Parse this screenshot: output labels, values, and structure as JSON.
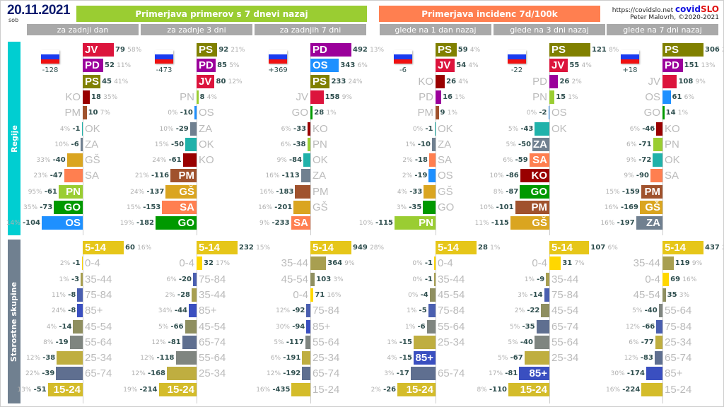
{
  "header": {
    "date": "20.11.2021",
    "weekday": "sob",
    "banner_left": "Primerjava primerov s 7 dnevi nazaj",
    "banner_right": "Primerjava incidenc 7d/100k",
    "url": "https://covidslo.net",
    "logo_a": "covid",
    "logo_b": "SLO",
    "author": "Peter Malovrh, ©2020-2021",
    "subheaders": [
      "za zadnji dan",
      "za zadnje 3 dni",
      "za zadnjih 7 dni",
      "glede na 1 dan nazaj",
      "glede na 3 dni nazaj",
      "glede na 7 dni nazaj"
    ]
  },
  "colors": {
    "JV": "#dc143c",
    "PD": "#9b009b",
    "PS": "#808000",
    "KO": "#990000",
    "PM": "#a0522d",
    "OK": "#20b2aa",
    "ZA": "#708090",
    "GŠ": "#daa520",
    "SA": "#ff7f50",
    "PN": "#9acd32",
    "GO": "#009900",
    "OS": "#1e90ff",
    "5-14": "#e6c619",
    "0-4": "#ffd700",
    "15-24": "#d4bc2a",
    "25-34": "#bfae40",
    "35-44": "#a89f50",
    "45-54": "#8f8f60",
    "55-64": "#7f8580",
    "65-74": "#5f6f90",
    "75-84": "#4a5fb0",
    "85+": "#3a4fc0",
    "regije_bar": "#00ced1",
    "starost_bar": "#708090"
  },
  "chart_data": [
    {
      "type": "bar",
      "title": "Regije",
      "panels": [
        {
          "total": "-128",
          "items": [
            {
              "l": "JV",
              "v": 79,
              "p": "58%",
              "in": true
            },
            {
              "l": "PD",
              "v": 52,
              "p": "11%",
              "in": true
            },
            {
              "l": "PS",
              "v": 45,
              "p": "41%",
              "in": true
            },
            {
              "l": "KO",
              "v": 18,
              "p": "35%"
            },
            {
              "l": "PM",
              "v": 10,
              "p": "7%"
            },
            {
              "l": "OK",
              "v": -1,
              "p": "4%"
            },
            {
              "l": "ZA",
              "v": -6,
              "p": "10%"
            },
            {
              "l": "GŠ",
              "v": -40,
              "p": "33%"
            },
            {
              "l": "SA",
              "v": -47,
              "p": "23%"
            },
            {
              "l": "PN",
              "v": -61,
              "p": "95%",
              "in": true
            },
            {
              "l": "GO",
              "v": -73,
              "p": "35%",
              "in": true
            },
            {
              "l": "OS",
              "v": -104,
              "p": "14%",
              "in": true
            }
          ]
        },
        {
          "total": "-473",
          "items": [
            {
              "l": "PS",
              "v": 92,
              "p": "21%",
              "in": true
            },
            {
              "l": "PD",
              "v": 85,
              "p": "5%",
              "in": true
            },
            {
              "l": "JV",
              "v": 80,
              "p": "12%",
              "in": true
            },
            {
              "l": "PN",
              "v": 8,
              "p": "4%"
            },
            {
              "l": "OS",
              "v": -10,
              "p": "0%"
            },
            {
              "l": "ZA",
              "v": -29,
              "p": "10%"
            },
            {
              "l": "OK",
              "v": -50,
              "p": "15%"
            },
            {
              "l": "KO",
              "v": -61,
              "p": "24%"
            },
            {
              "l": "PM",
              "v": -116,
              "p": "21%",
              "in": true
            },
            {
              "l": "GŠ",
              "v": -137,
              "p": "24%",
              "in": true
            },
            {
              "l": "SA",
              "v": -153,
              "p": "15%",
              "in": true
            },
            {
              "l": "GO",
              "v": -182,
              "p": "19%",
              "in": true
            }
          ]
        },
        {
          "total": "+369",
          "items": [
            {
              "l": "PD",
              "v": 492,
              "p": "13%",
              "in": true
            },
            {
              "l": "OS",
              "v": 343,
              "p": "6%",
              "in": true
            },
            {
              "l": "PS",
              "v": 233,
              "p": "24%",
              "in": true
            },
            {
              "l": "JV",
              "v": 158,
              "p": "9%"
            },
            {
              "l": "GO",
              "v": 28,
              "p": "1%"
            },
            {
              "l": "KO",
              "v": -33,
              "p": "6%"
            },
            {
              "l": "PN",
              "v": -38,
              "p": "6%"
            },
            {
              "l": "OK",
              "v": -84,
              "p": "9%"
            },
            {
              "l": "ZA",
              "v": -113,
              "p": "16%"
            },
            {
              "l": "PM",
              "v": -183,
              "p": "16%"
            },
            {
              "l": "GŠ",
              "v": -201,
              "p": "16%"
            },
            {
              "l": "SA",
              "v": -233,
              "p": "9%",
              "in": true
            }
          ]
        },
        {
          "total": "-6",
          "items": [
            {
              "l": "PS",
              "v": 59,
              "p": "4%",
              "in": true
            },
            {
              "l": "JV",
              "v": 54,
              "p": "4%",
              "in": true
            },
            {
              "l": "KO",
              "v": 26,
              "p": "4%"
            },
            {
              "l": "PD",
              "v": 16,
              "p": "1%"
            },
            {
              "l": "PM",
              "v": 9,
              "p": "1%"
            },
            {
              "l": "OK",
              "v": -1,
              "p": "0%"
            },
            {
              "l": "ZA",
              "v": -10,
              "p": "1%"
            },
            {
              "l": "SA",
              "v": -18,
              "p": "2%"
            },
            {
              "l": "OS",
              "v": -19,
              "p": "2%"
            },
            {
              "l": "GŠ",
              "v": -33,
              "p": "4%"
            },
            {
              "l": "GO",
              "v": -35,
              "p": "3%"
            },
            {
              "l": "PN",
              "v": -115,
              "p": "10%",
              "in": true
            }
          ]
        },
        {
          "total": "-22",
          "items": [
            {
              "l": "PS",
              "v": 121,
              "p": "8%",
              "in": true
            },
            {
              "l": "JV",
              "v": 55,
              "p": "4%",
              "in": true
            },
            {
              "l": "PD",
              "v": 26,
              "p": "2%"
            },
            {
              "l": "PN",
              "v": 15,
              "p": "1%"
            },
            {
              "l": "OS",
              "v": -2,
              "p": "0%"
            },
            {
              "l": "OK",
              "v": -43,
              "p": "5%"
            },
            {
              "l": "ZA",
              "v": -50,
              "p": "5%",
              "in": true
            },
            {
              "l": "SA",
              "v": -59,
              "p": "6%",
              "in": true
            },
            {
              "l": "KO",
              "v": -86,
              "p": "10%",
              "in": true
            },
            {
              "l": "GO",
              "v": -87,
              "p": "8%",
              "in": true
            },
            {
              "l": "PM",
              "v": -101,
              "p": "10%",
              "in": true
            },
            {
              "l": "GŠ",
              "v": -115,
              "p": "11%",
              "in": true
            }
          ]
        },
        {
          "total": "+18",
          "items": [
            {
              "l": "PS",
              "v": 306,
              "p": "24%",
              "in": true
            },
            {
              "l": "PD",
              "v": 151,
              "p": "13%",
              "in": true
            },
            {
              "l": "JV",
              "v": 108,
              "p": "9%"
            },
            {
              "l": "OS",
              "v": 61,
              "p": "6%"
            },
            {
              "l": "GO",
              "v": 14,
              "p": "1%"
            },
            {
              "l": "KO",
              "v": -46,
              "p": "6%"
            },
            {
              "l": "PN",
              "v": -71,
              "p": "6%"
            },
            {
              "l": "OK",
              "v": -72,
              "p": "9%"
            },
            {
              "l": "SA",
              "v": -90,
              "p": "9%"
            },
            {
              "l": "PM",
              "v": -159,
              "p": "15%",
              "in": true
            },
            {
              "l": "GŠ",
              "v": -169,
              "p": "16%",
              "in": true
            },
            {
              "l": "ZA",
              "v": -197,
              "p": "16%",
              "in": true
            }
          ]
        }
      ]
    },
    {
      "type": "bar",
      "title": "Starostne skupine",
      "panels": [
        {
          "items": [
            {
              "l": "5-14",
              "v": 60,
              "p": "16%",
              "in": true
            },
            {
              "l": "0-4",
              "v": -1,
              "p": "2%"
            },
            {
              "l": "35-44",
              "v": -3,
              "p": "1%"
            },
            {
              "l": "75-84",
              "v": -8,
              "p": "11%"
            },
            {
              "l": "85+",
              "v": -8,
              "p": "24%"
            },
            {
              "l": "45-54",
              "v": -14,
              "p": "4%"
            },
            {
              "l": "55-64",
              "v": -19,
              "p": "8%"
            },
            {
              "l": "25-34",
              "v": -38,
              "p": "12%"
            },
            {
              "l": "65-74",
              "v": -39,
              "p": "22%"
            },
            {
              "l": "15-24",
              "v": -51,
              "p": "13%",
              "in": true
            }
          ]
        },
        {
          "items": [
            {
              "l": "5-14",
              "v": 232,
              "p": "15%",
              "in": true
            },
            {
              "l": "0-4",
              "v": 32,
              "p": "17%"
            },
            {
              "l": "75-84",
              "v": -20,
              "p": "6%"
            },
            {
              "l": "35-44",
              "v": -28,
              "p": "2%"
            },
            {
              "l": "85+",
              "v": -44,
              "p": "34%"
            },
            {
              "l": "45-54",
              "v": -66,
              "p": "5%"
            },
            {
              "l": "65-74",
              "v": -81,
              "p": "12%"
            },
            {
              "l": "55-64",
              "v": -118,
              "p": "12%"
            },
            {
              "l": "25-34",
              "v": -168,
              "p": "12%"
            },
            {
              "l": "15-24",
              "v": -214,
              "p": "19%",
              "in": true
            }
          ]
        },
        {
          "items": [
            {
              "l": "5-14",
              "v": 949,
              "p": "28%",
              "in": true
            },
            {
              "l": "35-44",
              "v": 364,
              "p": "9%"
            },
            {
              "l": "45-54",
              "v": 103,
              "p": "3%"
            },
            {
              "l": "0-4",
              "v": 71,
              "p": "16%"
            },
            {
              "l": "75-84",
              "v": -92,
              "p": "12%"
            },
            {
              "l": "85+",
              "v": -94,
              "p": "30%"
            },
            {
              "l": "55-64",
              "v": -117,
              "p": "5%"
            },
            {
              "l": "25-34",
              "v": -191,
              "p": "6%"
            },
            {
              "l": "65-74",
              "v": -192,
              "p": "12%"
            },
            {
              "l": "15-24",
              "v": -435,
              "p": "16%"
            }
          ]
        },
        {
          "items": [
            {
              "l": "5-14",
              "v": 28,
              "p": "1%",
              "in": true
            },
            {
              "l": "0-4",
              "v": -1,
              "p": "0%"
            },
            {
              "l": "35-44",
              "v": -1,
              "p": "0%"
            },
            {
              "l": "45-54",
              "v": -4,
              "p": "0%"
            },
            {
              "l": "75-84",
              "v": -5,
              "p": "1%"
            },
            {
              "l": "55-64",
              "v": -6,
              "p": "1%"
            },
            {
              "l": "25-34",
              "v": -15,
              "p": "1%"
            },
            {
              "l": "85+",
              "v": -15,
              "p": "4%",
              "in": true
            },
            {
              "l": "65-74",
              "v": -17,
              "p": "3%"
            },
            {
              "l": "15-24",
              "v": -26,
              "p": "2%",
              "in": true
            }
          ]
        },
        {
          "items": [
            {
              "l": "5-14",
              "v": 107,
              "p": "6%",
              "in": true
            },
            {
              "l": "0-4",
              "v": 31,
              "p": "7%"
            },
            {
              "l": "35-44",
              "v": -9,
              "p": "1%"
            },
            {
              "l": "75-84",
              "v": -14,
              "p": "3%"
            },
            {
              "l": "45-54",
              "v": -22,
              "p": "2%"
            },
            {
              "l": "65-74",
              "v": -35,
              "p": "5%"
            },
            {
              "l": "55-64",
              "v": -40,
              "p": "5%"
            },
            {
              "l": "25-34",
              "v": -67,
              "p": "5%"
            },
            {
              "l": "85+",
              "v": -81,
              "p": "17%",
              "in": true
            },
            {
              "l": "15-24",
              "v": -110,
              "p": "8%",
              "in": true
            }
          ]
        },
        {
          "items": [
            {
              "l": "5-14",
              "v": 437,
              "p": "28%",
              "in": true
            },
            {
              "l": "35-44",
              "v": 119,
              "p": "9%"
            },
            {
              "l": "0-4",
              "v": 69,
              "p": "16%"
            },
            {
              "l": "45-54",
              "v": 35,
              "p": "3%"
            },
            {
              "l": "55-64",
              "v": -40,
              "p": "5%"
            },
            {
              "l": "75-84",
              "v": -66,
              "p": "12%"
            },
            {
              "l": "25-34",
              "v": -77,
              "p": "6%"
            },
            {
              "l": "65-74",
              "v": -83,
              "p": "12%"
            },
            {
              "l": "85+",
              "v": -174,
              "p": "30%"
            },
            {
              "l": "15-24",
              "v": -224,
              "p": "16%"
            }
          ]
        }
      ]
    }
  ]
}
